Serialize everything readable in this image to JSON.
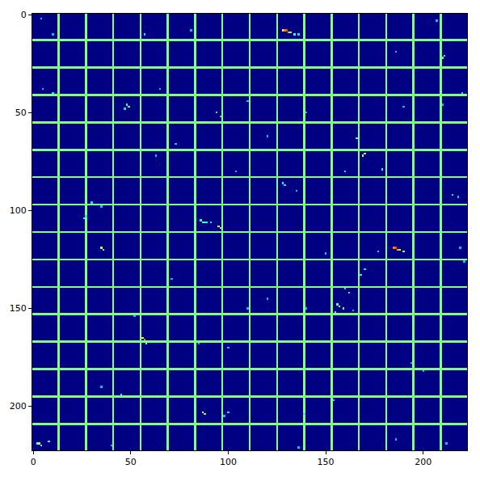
{
  "chart_data": {
    "type": "heatmap",
    "xlim": [
      -0.5,
      222.5
    ],
    "ylim": [
      222.5,
      -0.5
    ],
    "xticks": [
      0,
      50,
      100,
      150,
      200
    ],
    "yticks": [
      0,
      50,
      100,
      150,
      200
    ],
    "color": "Jet",
    "zlim": [
      0,
      1
    ],
    "shape": [
      223,
      223
    ],
    "background": 0,
    "separators": {
      "positions": [
        13,
        27,
        41,
        55,
        69,
        83,
        97,
        111,
        125,
        139,
        153,
        167,
        181,
        195,
        209
      ],
      "value": 0.5
    },
    "cells": [
      [
        128,
        8,
        0.6
      ],
      [
        129,
        8,
        0.75
      ],
      [
        130,
        8,
        0.8
      ],
      [
        131,
        9,
        0.7
      ],
      [
        132,
        9,
        0.5
      ],
      [
        134,
        10,
        0.4
      ],
      [
        136,
        10,
        0.35
      ],
      [
        4,
        2,
        0.3
      ],
      [
        10,
        10,
        0.3
      ],
      [
        57,
        10,
        0.35
      ],
      [
        81,
        8,
        0.3
      ],
      [
        211,
        21,
        0.4
      ],
      [
        210,
        22,
        0.45
      ],
      [
        207,
        3,
        0.3
      ],
      [
        186,
        19,
        0.3
      ],
      [
        10,
        40,
        0.35
      ],
      [
        5,
        38,
        0.3
      ],
      [
        48,
        46,
        0.4
      ],
      [
        49,
        47,
        0.45
      ],
      [
        47,
        48,
        0.35
      ],
      [
        94,
        50,
        0.4
      ],
      [
        96,
        52,
        0.35
      ],
      [
        120,
        62,
        0.3
      ],
      [
        166,
        63,
        0.45
      ],
      [
        167,
        64,
        0.4
      ],
      [
        169,
        72,
        0.55
      ],
      [
        170,
        71,
        0.5
      ],
      [
        179,
        79,
        0.4
      ],
      [
        160,
        80,
        0.35
      ],
      [
        63,
        72,
        0.3
      ],
      [
        73,
        66,
        0.3
      ],
      [
        104,
        80,
        0.3
      ],
      [
        128,
        86,
        0.4
      ],
      [
        129,
        87,
        0.35
      ],
      [
        135,
        90,
        0.3
      ],
      [
        30,
        96,
        0.35
      ],
      [
        35,
        98,
        0.3
      ],
      [
        27,
        103,
        0.35
      ],
      [
        26,
        104,
        0.4
      ],
      [
        86,
        105,
        0.4
      ],
      [
        87,
        106,
        0.45
      ],
      [
        88,
        106,
        0.4
      ],
      [
        89,
        106,
        0.4
      ],
      [
        91,
        106,
        0.35
      ],
      [
        95,
        108,
        0.55
      ],
      [
        96,
        109,
        0.5
      ],
      [
        35,
        119,
        0.55
      ],
      [
        36,
        120,
        0.5
      ],
      [
        185,
        119,
        0.75
      ],
      [
        186,
        119,
        0.8
      ],
      [
        187,
        120,
        0.7
      ],
      [
        188,
        120,
        0.6
      ],
      [
        190,
        121,
        0.5
      ],
      [
        177,
        121,
        0.35
      ],
      [
        170,
        130,
        0.35
      ],
      [
        168,
        133,
        0.4
      ],
      [
        160,
        140,
        0.35
      ],
      [
        162,
        142,
        0.4
      ],
      [
        156,
        148,
        0.45
      ],
      [
        157,
        149,
        0.5
      ],
      [
        159,
        150,
        0.45
      ],
      [
        155,
        152,
        0.4
      ],
      [
        164,
        151,
        0.3
      ],
      [
        71,
        135,
        0.3
      ],
      [
        120,
        145,
        0.3
      ],
      [
        110,
        150,
        0.3
      ],
      [
        52,
        154,
        0.3
      ],
      [
        56,
        165,
        0.6
      ],
      [
        57,
        166,
        0.75
      ],
      [
        58,
        168,
        0.55
      ],
      [
        85,
        168,
        0.3
      ],
      [
        100,
        170,
        0.3
      ],
      [
        140,
        150,
        0.3
      ],
      [
        194,
        178,
        0.3
      ],
      [
        200,
        182,
        0.3
      ],
      [
        35,
        190,
        0.3
      ],
      [
        45,
        194,
        0.4
      ],
      [
        87,
        203,
        0.6
      ],
      [
        88,
        204,
        0.5
      ],
      [
        100,
        203,
        0.35
      ],
      [
        98,
        205,
        0.3
      ],
      [
        139,
        204,
        0.35
      ],
      [
        154,
        197,
        0.35
      ],
      [
        2,
        219,
        0.45
      ],
      [
        3,
        219,
        0.5
      ],
      [
        4,
        220,
        0.45
      ],
      [
        8,
        218,
        0.4
      ],
      [
        40,
        220,
        0.3
      ],
      [
        186,
        217,
        0.3
      ],
      [
        212,
        219,
        0.3
      ],
      [
        136,
        221,
        0.3
      ],
      [
        215,
        92,
        0.35
      ],
      [
        218,
        93,
        0.3
      ],
      [
        210,
        46,
        0.3
      ],
      [
        220,
        40,
        0.35
      ],
      [
        219,
        119,
        0.3
      ],
      [
        221,
        126,
        0.3
      ],
      [
        150,
        122,
        0.3
      ],
      [
        65,
        38,
        0.3
      ],
      [
        110,
        44,
        0.3
      ],
      [
        140,
        50,
        0.3
      ],
      [
        190,
        47,
        0.3
      ]
    ]
  }
}
